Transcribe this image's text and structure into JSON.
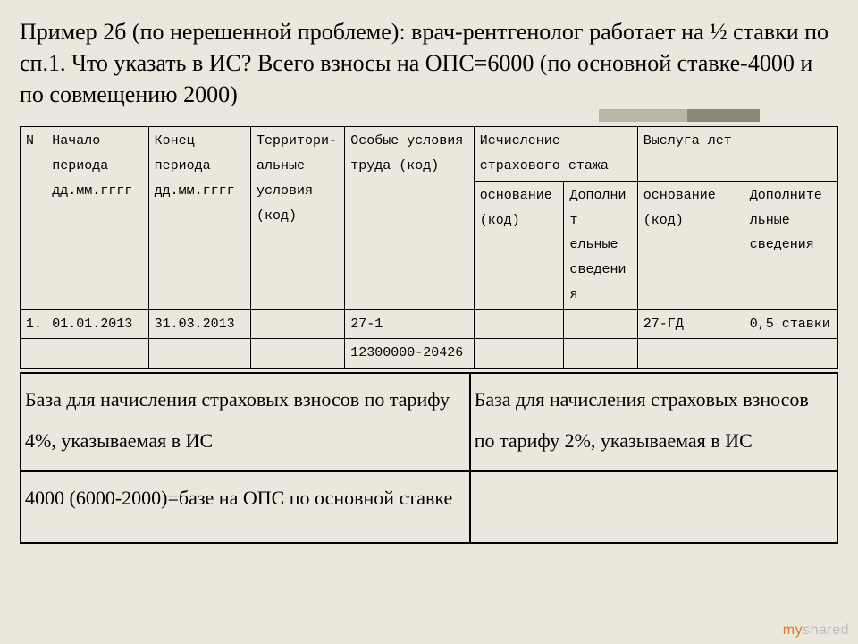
{
  "title": "Пример 2б (по нерешенной проблеме): врач-рентгенолог работает на ½ ставки по сп.1. Что указать в ИС? Всего взносы на ОПС=6000 (по основной ставке-4000 и по совмещению 2000)",
  "table1": {
    "headers": {
      "n": "N",
      "period_start": "Начало периода дд.мм.гггг",
      "period_end": "Конец периода дд.мм.гггг",
      "territorial": "Территори-альные условия (код)",
      "special": "Особые условия труда (код)",
      "insurance_group": "Исчисление страхового стажа",
      "insurance_basis": "основание (код)",
      "insurance_extra": "Дополнит ельные сведения",
      "service_group": "Выслуга лет",
      "service_basis": "основание (код)",
      "service_extra": "Дополните льные сведения"
    },
    "rows": [
      {
        "n": "1.",
        "period_start": "01.01.2013",
        "period_end": "31.03.2013",
        "territorial": "",
        "special": "27-1",
        "insurance_basis": "",
        "insurance_extra": "",
        "service_basis": "27-ГД",
        "service_extra": "0,5 ставки"
      },
      {
        "n": "",
        "period_start": "",
        "period_end": "",
        "territorial": "",
        "special": "12300000-20426",
        "insurance_basis": "",
        "insurance_extra": "",
        "service_basis": "",
        "service_extra": ""
      }
    ]
  },
  "table2": {
    "header_left": "База для начисления страховых взносов по тарифу 4%, указываемая в ИС",
    "header_right": "База для начисления страховых взносов по тарифу 2%, указываемая в ИС",
    "row_left": "4000 (6000-2000)=базе на ОПС по основной ставке",
    "row_right": ""
  },
  "watermark": {
    "part1": "my",
    "part2": "shared"
  },
  "colors": {
    "background": "#eae7dc",
    "accent_light": "#b9b6a9",
    "accent_dark": "#8a8776",
    "watermark_orange": "#e07a2a",
    "watermark_gray": "#bdbdbd"
  }
}
